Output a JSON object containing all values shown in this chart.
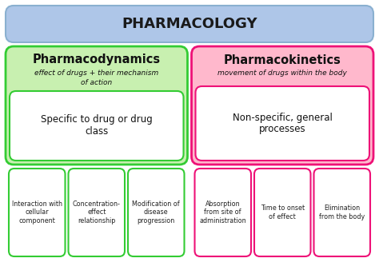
{
  "title": "PHARMACOLOGY",
  "title_bg": "#aec6e8",
  "title_border": "#8ab0d0",
  "left_section_bg": "#c8f0b0",
  "left_section_border": "#33cc33",
  "right_section_bg": "#ffb8cc",
  "right_section_border": "#ee1177",
  "left_header": "Pharmacodynamics",
  "left_handwritten_line1": "effect of drugs + their mechanism",
  "left_handwritten_line2": "of action",
  "left_body": "Specific to drug or drug\nclass",
  "right_header": "Pharmacokinetics",
  "right_handwritten": "movement of drugs within the body",
  "right_body": "Non-specific, general\nprocesses",
  "left_boxes": [
    "Interaction with\ncellular\ncomponent",
    "Concentration-\neffect\nrelationship",
    "Modification of\ndisease\nprogression"
  ],
  "right_boxes": [
    "Absorption\nfrom site of\nadministration",
    "Time to onset\nof effect",
    "Elimination\nfrom the body"
  ],
  "left_box_bg": "#ffffff",
  "left_box_border": "#33cc33",
  "right_box_bg": "#ffffff",
  "right_box_border": "#ee1177",
  "bg_color": "#ffffff",
  "fig_width": 4.74,
  "fig_height": 3.28,
  "dpi": 100
}
